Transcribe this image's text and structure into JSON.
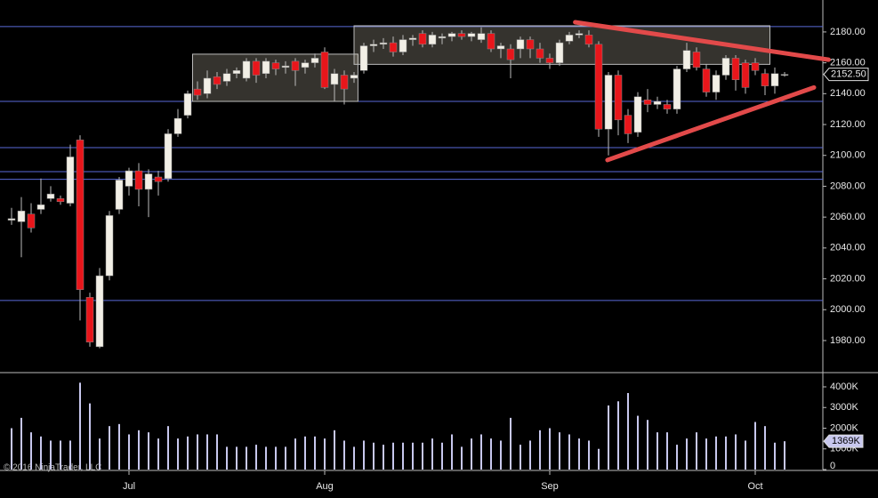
{
  "chart_data": [
    {
      "type": "candlestick",
      "open": [
        2058,
        2057,
        2062,
        2065,
        2072,
        2072,
        2069,
        2110,
        2008,
        1976,
        2022,
        2065,
        2080,
        2090,
        2078,
        2086,
        2085,
        2114,
        2126,
        2143,
        2140,
        2151,
        2148,
        2153,
        2150,
        2161,
        2153,
        2160,
        2157,
        2161,
        2157,
        2160,
        2167,
        2146,
        2152,
        2150,
        2155,
        2171,
        2172,
        2173,
        2167,
        2175,
        2179,
        2172,
        2176,
        2177,
        2179,
        2177,
        2175,
        2179,
        2169,
        2169,
        2169,
        2175,
        2169,
        2163,
        2160,
        2174,
        2178,
        2178,
        2172,
        2117,
        2152,
        2126,
        2115,
        2136,
        2133,
        2133,
        2130,
        2156,
        2167,
        2156,
        2141,
        2152,
        2163,
        2160,
        2160,
        2153,
        2145,
        2152.5
      ],
      "high": [
        2066,
        2073,
        2069,
        2085,
        2080,
        2074,
        2107,
        2113,
        2011,
        2027,
        2064,
        2086,
        2092,
        2095,
        2091,
        2090,
        2117,
        2130,
        2142,
        2148,
        2155,
        2154,
        2156,
        2157,
        2163,
        2163,
        2163,
        2162,
        2161,
        2163,
        2162,
        2166,
        2170,
        2156,
        2155,
        2154,
        2173,
        2175,
        2176,
        2177,
        2178,
        2178,
        2181,
        2180,
        2179,
        2180,
        2181,
        2180,
        2183,
        2181,
        2173,
        2172,
        2177,
        2177,
        2173,
        2166,
        2175,
        2180,
        2181,
        2181,
        2174,
        2154,
        2155,
        2130,
        2141,
        2143,
        2138,
        2136,
        2158,
        2173,
        2170,
        2159,
        2155,
        2165,
        2165,
        2162,
        2163,
        2156,
        2157,
        2154
      ],
      "low": [
        2055,
        2034,
        2050,
        2062,
        2070,
        2068,
        2067,
        1993,
        1976,
        1975,
        2019,
        2062,
        2074,
        2067,
        2060,
        2074,
        2083,
        2112,
        2124,
        2136,
        2137,
        2143,
        2145,
        2150,
        2148,
        2147,
        2150,
        2152,
        2153,
        2145,
        2153,
        2157,
        2143,
        2135,
        2133,
        2147,
        2153,
        2167,
        2169,
        2164,
        2165,
        2171,
        2170,
        2170,
        2172,
        2174,
        2175,
        2174,
        2173,
        2167,
        2163,
        2150,
        2163,
        2163,
        2160,
        2156,
        2158,
        2172,
        2176,
        2170,
        2112,
        2100,
        2113,
        2108,
        2112,
        2128,
        2130,
        2127,
        2127,
        2154,
        2155,
        2138,
        2136,
        2149,
        2142,
        2140,
        2152,
        2139,
        2140,
        2151
      ],
      "close": [
        2059,
        2064,
        2053,
        2068,
        2075,
        2070,
        2099,
        2013,
        1979,
        2022,
        2061,
        2084,
        2090,
        2078,
        2088,
        2083,
        2114,
        2124,
        2140,
        2139,
        2150,
        2146,
        2153,
        2155,
        2161,
        2152,
        2161,
        2156,
        2158,
        2155,
        2160,
        2163,
        2144,
        2153,
        2143,
        2152,
        2171,
        2172,
        2173,
        2167,
        2175,
        2176,
        2172,
        2178,
        2177,
        2179,
        2177,
        2179,
        2179,
        2169,
        2171,
        2162,
        2175,
        2169,
        2163,
        2160,
        2173,
        2178,
        2179,
        2172,
        2117,
        2152,
        2123,
        2114,
        2138,
        2133,
        2135,
        2130,
        2156,
        2168,
        2157,
        2141,
        2152,
        2163,
        2149,
        2144,
        2155,
        2145,
        2153,
        2152.5
      ],
      "ylim": [
        1959.8,
        2200.7
      ],
      "yticks": [
        {
          "value": 1980,
          "label": "1980.00"
        },
        {
          "value": 2000,
          "label": "2000.00"
        },
        {
          "value": 2020,
          "label": "2020.00"
        },
        {
          "value": 2040,
          "label": "2040.00"
        },
        {
          "value": 2060,
          "label": "2060.00"
        },
        {
          "value": 2080,
          "label": "2080.00"
        },
        {
          "value": 2100,
          "label": "2100.00"
        },
        {
          "value": 2120,
          "label": "2120.00"
        },
        {
          "value": 2140,
          "label": "2140.00"
        },
        {
          "value": 2160,
          "label": "2160.00"
        },
        {
          "value": 2180,
          "label": "2180.00"
        }
      ],
      "last_value": {
        "value": 2152.5,
        "label": "2152.50"
      },
      "up_color": "#f2efe6",
      "down_color": "#e8161b",
      "hlines": [
        2183.5,
        2135,
        2105,
        2089.5,
        2084.5,
        2006
      ],
      "hline_color": "#5a6ad8",
      "boxes": [
        {
          "x": [
            18.5,
            35.4
          ],
          "y": [
            2135,
            2165.6
          ]
        },
        {
          "x": [
            35,
            77.5
          ],
          "y": [
            2159,
            2184
          ]
        }
      ],
      "trendlines": [
        {
          "x": [
            57.6,
            83.5
          ],
          "y": [
            2186.3,
            2162
          ]
        },
        {
          "x": [
            60.9,
            82
          ],
          "y": [
            2097,
            2144
          ]
        }
      ],
      "trend_color": "#e24a4a"
    },
    {
      "type": "bar",
      "categories": [
        null,
        null,
        null,
        null,
        null,
        null,
        null,
        null,
        null,
        null,
        null,
        null,
        "Jul",
        null,
        null,
        null,
        null,
        null,
        null,
        null,
        null,
        null,
        null,
        null,
        null,
        null,
        null,
        null,
        null,
        null,
        null,
        null,
        "Aug",
        null,
        null,
        null,
        null,
        null,
        null,
        null,
        null,
        null,
        null,
        null,
        null,
        null,
        null,
        null,
        null,
        null,
        null,
        null,
        null,
        null,
        null,
        "Sep",
        null,
        null,
        null,
        null,
        null,
        null,
        null,
        null,
        null,
        null,
        null,
        null,
        null,
        null,
        null,
        null,
        null,
        null,
        null,
        null,
        "Oct",
        null,
        null,
        null
      ],
      "values": [
        2000,
        2500,
        1800,
        1600,
        1400,
        1400,
        1400,
        4200,
        3200,
        1500,
        2100,
        2200,
        1700,
        1900,
        1800,
        1500,
        2100,
        1500,
        1600,
        1700,
        1700,
        1700,
        1100,
        1100,
        1100,
        1200,
        1100,
        1100,
        1100,
        1500,
        1600,
        1600,
        1500,
        1900,
        1400,
        1100,
        1400,
        1300,
        1200,
        1300,
        1300,
        1300,
        1300,
        1500,
        1300,
        1700,
        1100,
        1500,
        1700,
        1500,
        1400,
        2500,
        1200,
        1400,
        1900,
        2000,
        1800,
        1700,
        1500,
        1400,
        1000,
        3100,
        3300,
        3700,
        2600,
        2400,
        1800,
        1800,
        1200,
        1500,
        1800,
        1500,
        1600,
        1600,
        1700,
        1400,
        2300,
        2100,
        1300,
        1369
      ],
      "color": "#c8c8ee",
      "ylim": [
        0,
        4645
      ],
      "yticks": [
        0,
        {
          "value": 1000,
          "label": "1000K"
        },
        {
          "value": 2000,
          "label": "2000K"
        },
        {
          "value": 3000,
          "label": "3000K"
        },
        {
          "value": 4000,
          "label": "4000K"
        }
      ],
      "last_value": {
        "value": 1369,
        "label": "1369K"
      }
    }
  ],
  "copyright": "© 2016 NinjaTrader, LLC"
}
